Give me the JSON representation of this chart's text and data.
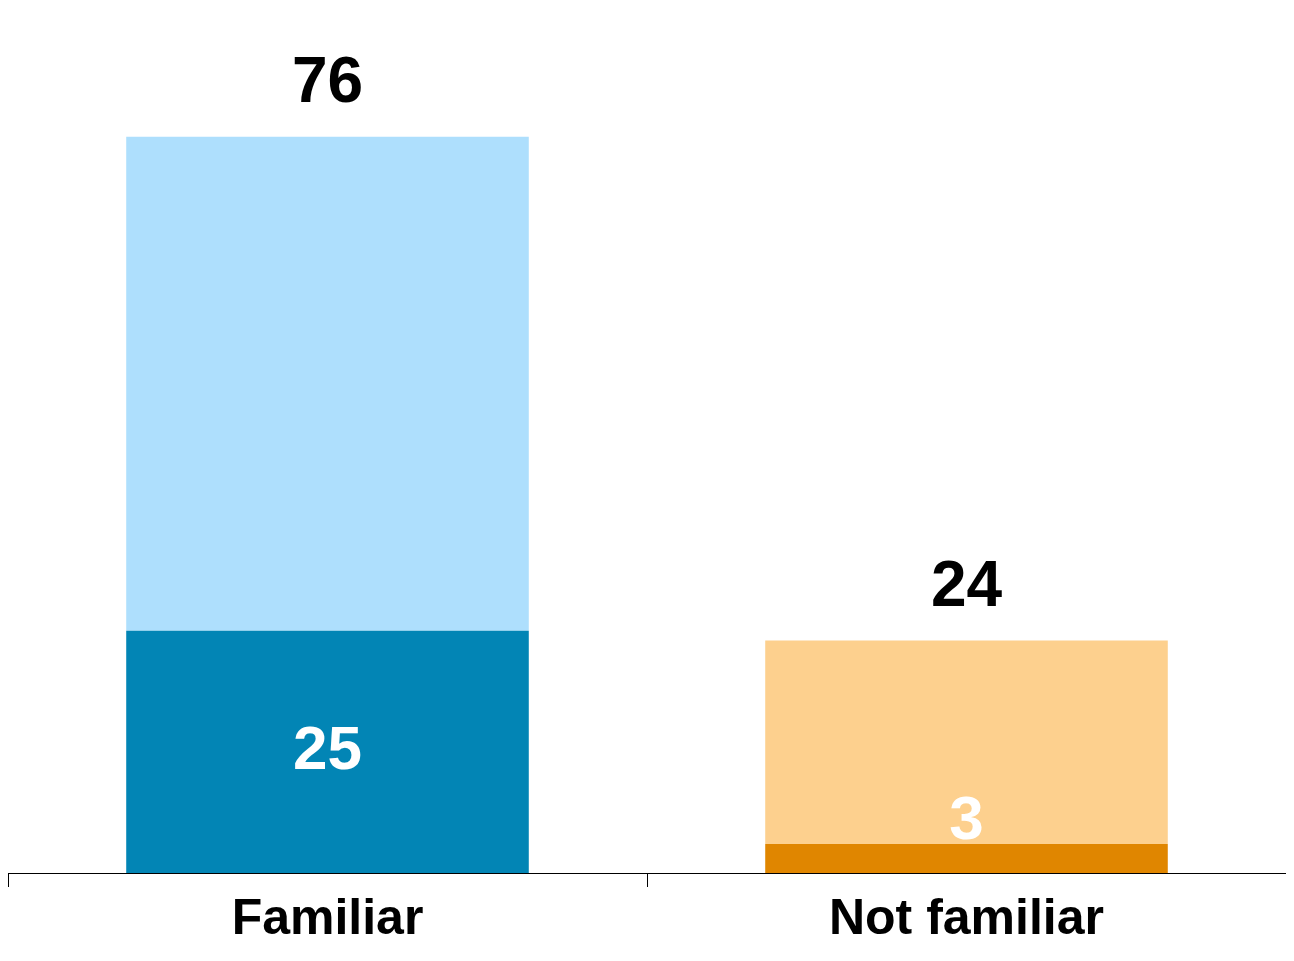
{
  "chart_data": {
    "type": "bar",
    "stacked": true,
    "categories": [
      "Familiar",
      "Not familiar"
    ],
    "series": [
      {
        "colors": [
          "#0285b5",
          "#e08600"
        ],
        "values": [
          25,
          3
        ],
        "value_labels": [
          "25",
          "3"
        ]
      },
      {
        "colors": [
          "#aedffd",
          "#fdd08e"
        ],
        "values": [
          51,
          21
        ]
      }
    ],
    "totals": [
      "76",
      "24"
    ]
  }
}
